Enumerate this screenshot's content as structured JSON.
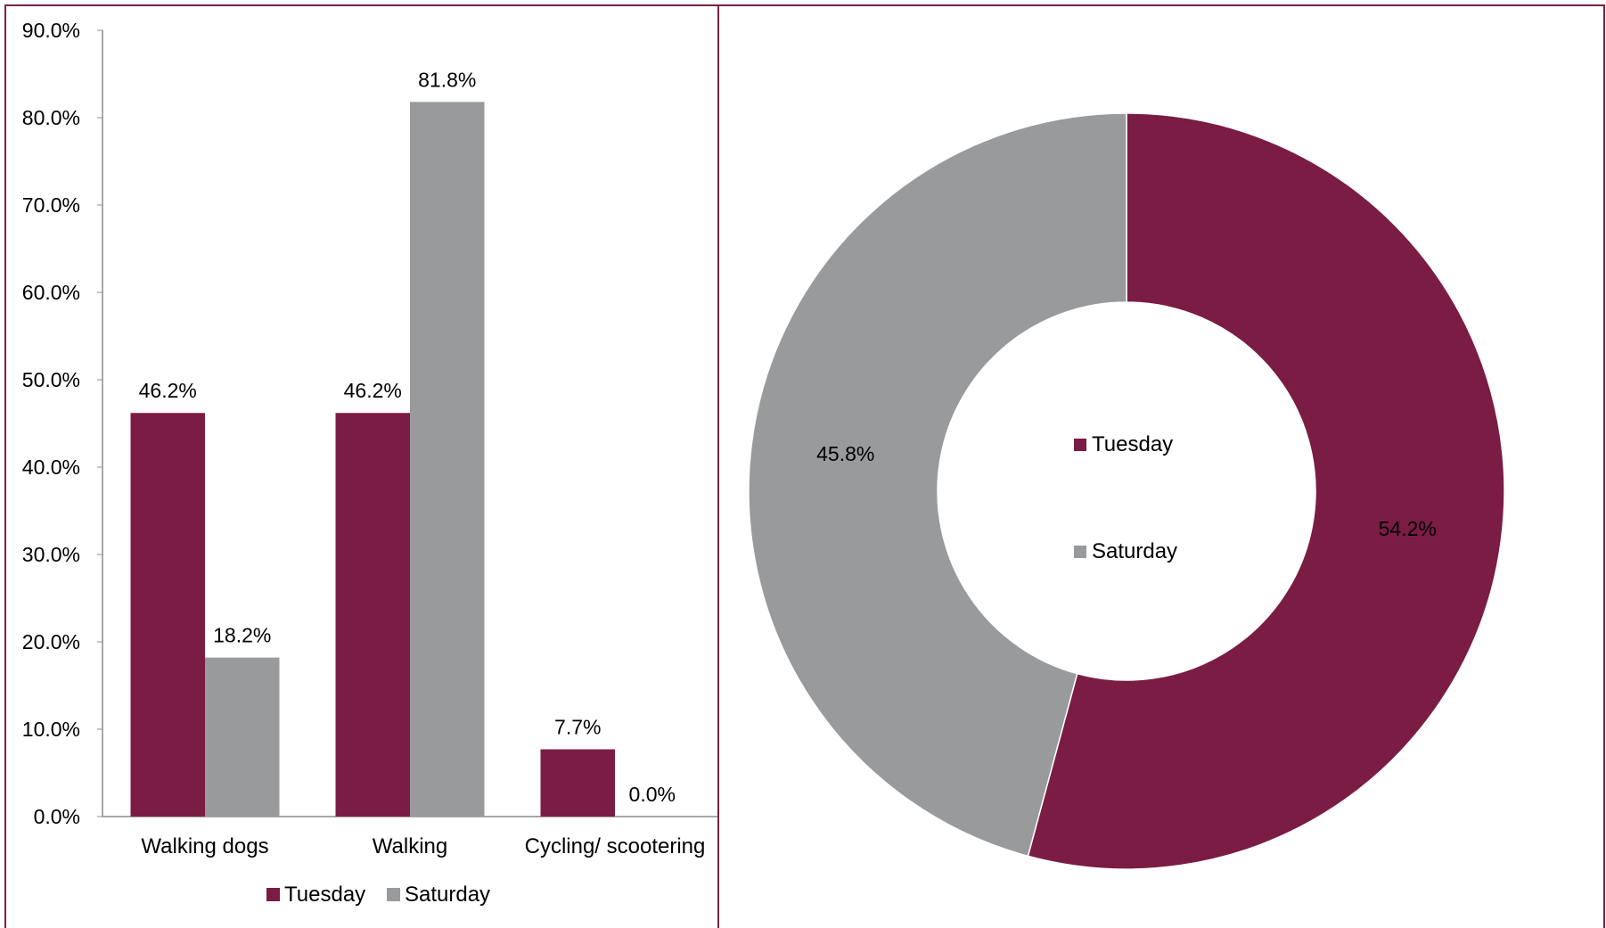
{
  "colors": {
    "tuesday": "#7b1c45",
    "saturday": "#999a9c",
    "border": "#7b2146",
    "axis": "#8c8c8c"
  },
  "chart_data": [
    {
      "type": "bar",
      "categories": [
        "Walking dogs",
        "Walking",
        "Cycling/ scootering"
      ],
      "series": [
        {
          "name": "Tuesday",
          "values": [
            46.2,
            46.2,
            7.7
          ],
          "labels": [
            "46.2%",
            "46.2%",
            "7.7%"
          ]
        },
        {
          "name": "Saturday",
          "values": [
            18.2,
            81.8,
            0.0
          ],
          "labels": [
            "18.2%",
            "81.8%",
            "0.0%"
          ]
        }
      ],
      "ylim": [
        0,
        90
      ],
      "yticks": [
        "0.0%",
        "10.0%",
        "20.0%",
        "30.0%",
        "40.0%",
        "50.0%",
        "60.0%",
        "70.0%",
        "80.0%",
        "90.0%"
      ],
      "legend": "bottom",
      "grid": false
    },
    {
      "type": "pie",
      "donut": true,
      "slices": [
        {
          "name": "Tuesday",
          "value": 54.2,
          "label": "54.2%"
        },
        {
          "name": "Saturday",
          "value": 45.8,
          "label": "45.8%"
        }
      ],
      "legend": "center"
    }
  ]
}
